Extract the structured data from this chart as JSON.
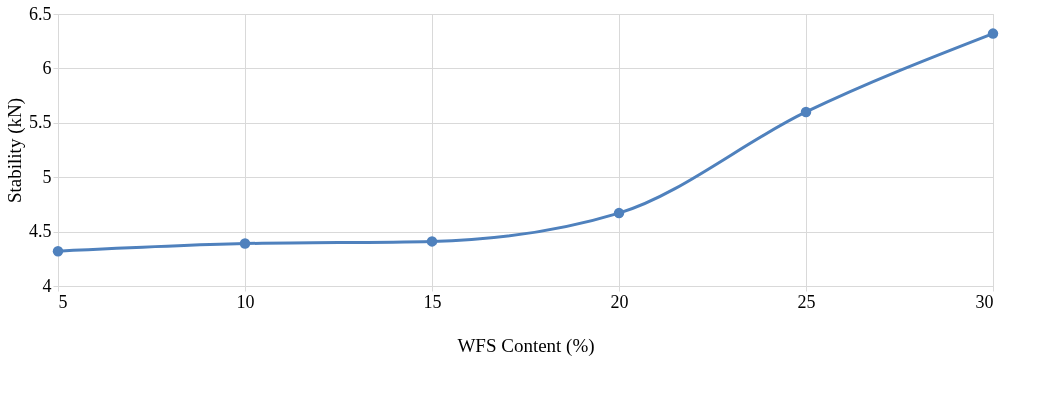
{
  "chart_data": {
    "type": "line",
    "xlabel": "WFS Content  (%)",
    "ylabel": "Stability (kN)",
    "x": [
      5,
      10,
      15,
      20,
      25,
      30
    ],
    "series": [
      {
        "color": "#4f81bd",
        "values": [
          4.32,
          4.39,
          4.41,
          4.67,
          5.6,
          6.32
        ]
      }
    ],
    "xlim": [
      5,
      30
    ],
    "xticks": [
      5,
      10,
      15,
      20,
      25,
      30
    ],
    "ylim": [
      4,
      6.5
    ],
    "yticks": [
      4,
      4.5,
      5,
      5.5,
      6,
      6.5
    ],
    "grid": true,
    "marker": "circle",
    "line_style": "solid"
  }
}
